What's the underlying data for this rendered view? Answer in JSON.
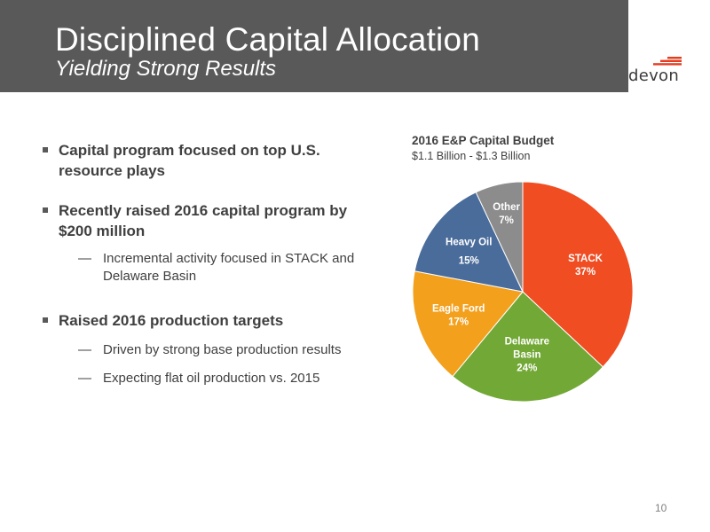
{
  "header": {
    "title": "Disciplined Capital Allocation",
    "subtitle": "Yielding Strong Results",
    "logo_text": "devon"
  },
  "bullets": [
    {
      "text": "Capital program focused on top U.S. resource plays",
      "sub": []
    },
    {
      "text": "Recently raised 2016 capital program by $200 million",
      "sub": [
        "Incremental activity focused in STACK and Delaware Basin"
      ]
    },
    {
      "text": "Raised 2016 production targets",
      "sub": [
        "Driven by strong base production results",
        "Expecting flat oil production vs. 2015"
      ]
    }
  ],
  "chart_data": {
    "type": "pie",
    "title": "2016 E&P Capital Budget",
    "subtitle": "$1.1 Billion - $1.3 Billion",
    "slices": [
      {
        "label": "STACK",
        "value": 37,
        "value_label": "37%",
        "color": "#f04d23"
      },
      {
        "label": "Delaware Basin",
        "value": 24,
        "value_label": "24%",
        "color": "#72a835"
      },
      {
        "label": "Eagle Ford",
        "value": 17,
        "value_label": "17%",
        "color": "#f3a01d"
      },
      {
        "label": "Heavy Oil",
        "value": 15,
        "value_label": "15%",
        "color": "#4a6c9b"
      },
      {
        "label": "Other",
        "value": 7,
        "value_label": "7%",
        "color": "#8c8c8c"
      }
    ]
  },
  "footer": {
    "page_number": "10"
  },
  "colors": {
    "header_bg": "#595959",
    "logo_accent": "#e63b1f"
  }
}
